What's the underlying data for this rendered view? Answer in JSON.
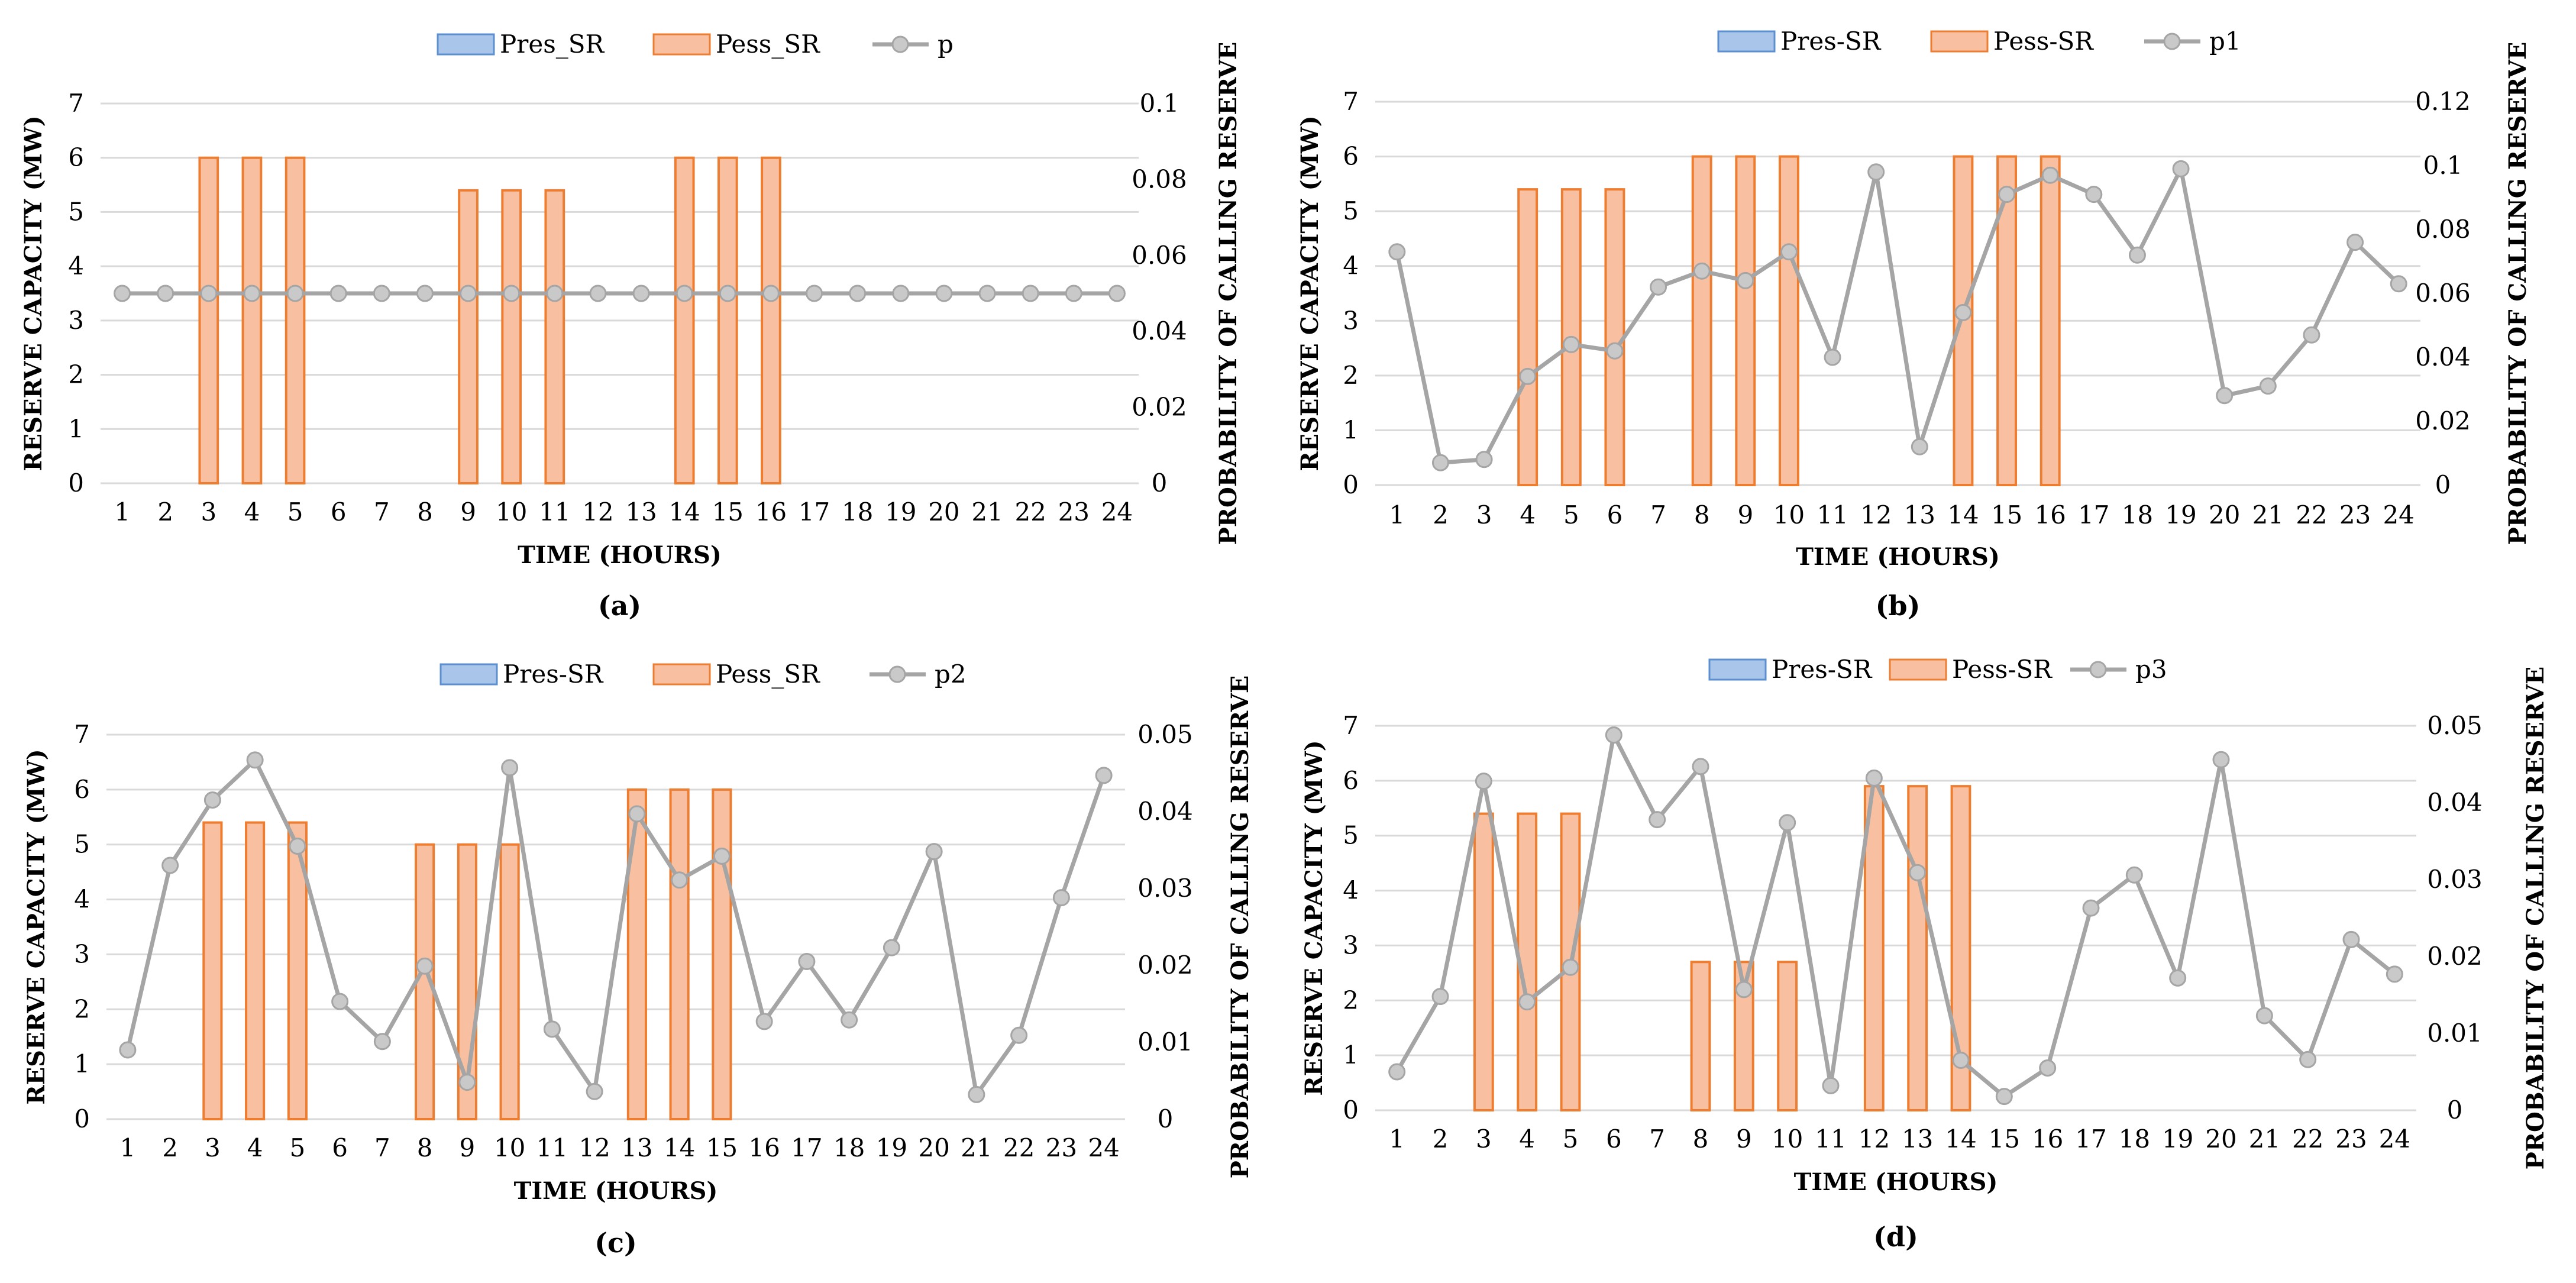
{
  "chart_data": [
    {
      "id": "a",
      "type": "bar+line",
      "caption": "(a)",
      "xlabel": "TIME (HOURS)",
      "ylabel": "RESERVE CAPACITY (MW)",
      "y2label": "PROBABILITY OF CALLING RESERVE",
      "categories": [
        "1",
        "2",
        "3",
        "4",
        "5",
        "6",
        "7",
        "8",
        "9",
        "10",
        "11",
        "12",
        "13",
        "14",
        "15",
        "16",
        "17",
        "18",
        "19",
        "20",
        "21",
        "22",
        "23",
        "24"
      ],
      "ylim": [
        0,
        7
      ],
      "yticks": [
        "0",
        "1",
        "2",
        "3",
        "4",
        "5",
        "6",
        "7"
      ],
      "y2lim": [
        0,
        0.1
      ],
      "y2ticks": [
        "0",
        "0.02",
        "0.04",
        "0.06",
        "0.08",
        "0.1"
      ],
      "legend": {
        "pres": "Pres_SR",
        "pess": "Pess_SR",
        "p": "p"
      },
      "series": [
        {
          "name": "Pres_SR",
          "values": [
            0,
            0,
            0,
            0,
            0,
            0,
            0,
            0,
            0,
            0,
            0,
            0,
            0,
            0,
            0,
            0,
            0,
            0,
            0,
            0,
            0,
            0,
            0,
            0
          ]
        },
        {
          "name": "Pess_SR",
          "values": [
            0,
            0,
            6,
            6,
            6,
            0,
            0,
            0,
            5.4,
            5.4,
            5.4,
            0,
            0,
            6,
            6,
            6,
            0,
            0,
            0,
            0,
            0,
            0,
            0,
            0
          ]
        },
        {
          "name": "p",
          "axis": "secondary",
          "values": [
            0.05,
            0.05,
            0.05,
            0.05,
            0.05,
            0.05,
            0.05,
            0.05,
            0.05,
            0.05,
            0.05,
            0.05,
            0.05,
            0.05,
            0.05,
            0.05,
            0.05,
            0.05,
            0.05,
            0.05,
            0.05,
            0.05,
            0.05,
            0.05
          ]
        }
      ]
    },
    {
      "id": "b",
      "type": "bar+line",
      "caption": "(b)",
      "xlabel": "TIME (HOURS)",
      "ylabel": "RESERVE CAPACITY (MW)",
      "y2label": "PROBABILITY OF CALLING RESERVE",
      "categories": [
        "1",
        "2",
        "3",
        "4",
        "5",
        "6",
        "7",
        "8",
        "9",
        "10",
        "11",
        "12",
        "13",
        "14",
        "15",
        "16",
        "17",
        "18",
        "19",
        "20",
        "21",
        "22",
        "23",
        "24"
      ],
      "ylim": [
        0,
        7
      ],
      "yticks": [
        "0",
        "1",
        "2",
        "3",
        "4",
        "5",
        "6",
        "7"
      ],
      "y2lim": [
        0,
        0.12
      ],
      "y2ticks": [
        "0",
        "0.02",
        "0.04",
        "0.06",
        "0.08",
        "0.1",
        "0.12"
      ],
      "legend": {
        "pres": "Pres-SR",
        "pess": "Pess-SR",
        "p": "p1"
      },
      "series": [
        {
          "name": "Pres-SR",
          "values": [
            0,
            0,
            0,
            0,
            0,
            0,
            0,
            0,
            0,
            0,
            0,
            0,
            0,
            0,
            0,
            0,
            0,
            0,
            0,
            0,
            0,
            0,
            0,
            0
          ]
        },
        {
          "name": "Pess-SR",
          "values": [
            0,
            0,
            0,
            5.4,
            5.4,
            5.4,
            0,
            6,
            6,
            6,
            0,
            0,
            0,
            6,
            6,
            6,
            0,
            0,
            0,
            0,
            0,
            0,
            0,
            0
          ]
        },
        {
          "name": "p1",
          "axis": "secondary",
          "values": [
            0.073,
            0.007,
            0.008,
            0.034,
            0.044,
            0.042,
            0.062,
            0.067,
            0.064,
            0.073,
            0.04,
            0.098,
            0.012,
            0.054,
            0.091,
            0.097,
            0.091,
            0.072,
            0.099,
            0.028,
            0.031,
            0.047,
            0.076,
            0.063
          ]
        }
      ]
    },
    {
      "id": "c",
      "type": "bar+line",
      "caption": "(c)",
      "xlabel": "TIME (HOURS)",
      "ylabel": "RESERVE CAPACITY (MW)",
      "y2label": "PROBABILITY OF CALLING RESERVE",
      "categories": [
        "1",
        "2",
        "3",
        "4",
        "5",
        "6",
        "7",
        "8",
        "9",
        "10",
        "11",
        "12",
        "13",
        "14",
        "15",
        "16",
        "17",
        "18",
        "19",
        "20",
        "21",
        "22",
        "23",
        "24"
      ],
      "ylim": [
        0,
        7
      ],
      "yticks": [
        "0",
        "1",
        "2",
        "3",
        "4",
        "5",
        "6",
        "7"
      ],
      "y2lim": [
        0,
        0.05
      ],
      "y2ticks": [
        "0",
        "0.01",
        "0.02",
        "0.03",
        "0.04",
        "0.05"
      ],
      "legend": {
        "pres": "Pres-SR",
        "pess": "Pess_SR",
        "p": "p2"
      },
      "series": [
        {
          "name": "Pres-SR",
          "values": [
            0,
            0,
            0,
            0,
            0,
            0,
            0,
            0,
            0,
            0,
            0,
            0,
            0,
            0,
            0,
            0,
            0,
            0,
            0,
            0,
            0,
            0,
            0,
            0
          ]
        },
        {
          "name": "Pess_SR",
          "values": [
            0,
            0,
            5.4,
            5.4,
            5.4,
            0,
            0,
            5,
            5,
            5,
            0,
            0,
            6,
            6,
            6,
            0,
            0,
            0,
            0,
            0,
            0,
            0,
            0,
            0
          ]
        },
        {
          "name": "p2",
          "axis": "secondary",
          "values": [
            0.009,
            0.033,
            0.0415,
            0.0467,
            0.0355,
            0.0153,
            0.0101,
            0.0199,
            0.0048,
            0.0457,
            0.0117,
            0.0036,
            0.0397,
            0.0311,
            0.0342,
            0.0127,
            0.0205,
            0.0129,
            0.0223,
            0.0348,
            0.0032,
            0.0109,
            0.0288,
            0.0447
          ]
        }
      ]
    },
    {
      "id": "d",
      "type": "bar+line",
      "caption": "(d)",
      "xlabel": "TIME (HOURS)",
      "ylabel": "RESERVE CAPACITY (MW)",
      "y2label": "PROBABILITY OF CALLING RESERVE",
      "categories": [
        "1",
        "2",
        "3",
        "4",
        "5",
        "6",
        "7",
        "8",
        "9",
        "10",
        "11",
        "12",
        "13",
        "14",
        "15",
        "16",
        "17",
        "18",
        "19",
        "20",
        "21",
        "22",
        "23",
        "24"
      ],
      "ylim": [
        0,
        7
      ],
      "yticks": [
        "0",
        "1",
        "2",
        "3",
        "4",
        "5",
        "6",
        "7"
      ],
      "y2lim": [
        0,
        0.05
      ],
      "y2ticks": [
        "0",
        "0.01",
        "0.02",
        "0.03",
        "0.04",
        "0.05"
      ],
      "legend": {
        "pres": "Pres-SR",
        "pess": "Pess-SR",
        "p": "p3"
      },
      "series": [
        {
          "name": "Pres-SR",
          "values": [
            0,
            0,
            0,
            0,
            0,
            0,
            0,
            0,
            0,
            0,
            0,
            0,
            0,
            0,
            0,
            0,
            0,
            0,
            0,
            0,
            0,
            0,
            0,
            0
          ]
        },
        {
          "name": "Pess-SR",
          "values": [
            0,
            0,
            5.4,
            5.4,
            5.4,
            0,
            0,
            2.7,
            2.7,
            2.7,
            0,
            5.9,
            5.9,
            5.9,
            0,
            0,
            0,
            0,
            0,
            0,
            0,
            0,
            0,
            0
          ]
        },
        {
          "name": "p3",
          "axis": "secondary",
          "values": [
            0.005,
            0.0148,
            0.0428,
            0.0141,
            0.0186,
            0.0488,
            0.0378,
            0.0447,
            0.0157,
            0.0374,
            0.0032,
            0.0432,
            0.0309,
            0.0065,
            0.0018,
            0.0055,
            0.0263,
            0.0306,
            0.0172,
            0.0456,
            0.0123,
            0.0066,
            0.0222,
            0.0177
          ]
        }
      ]
    }
  ],
  "colors": {
    "pres_fill": "#a9c6ea",
    "pres_stroke": "#5b8fcf",
    "pess_fill": "#f8c0a0",
    "pess_stroke": "#ed7d31",
    "line": "#a5a5a5",
    "marker_fill": "#c9c9c9",
    "marker_stroke": "#a5a5a5",
    "grid": "#d9d9d9"
  }
}
